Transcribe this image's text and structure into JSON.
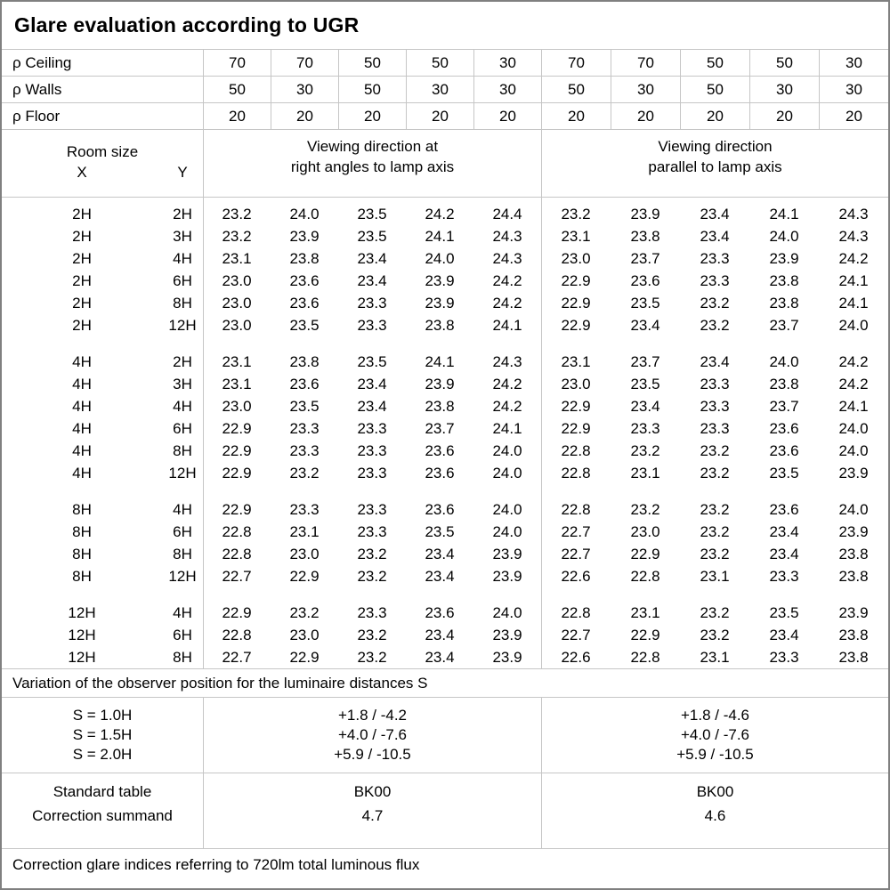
{
  "title": "Glare evaluation according to UGR",
  "reflectance": {
    "rows": [
      {
        "label": "ρ Ceiling",
        "values": [
          "70",
          "70",
          "50",
          "50",
          "30",
          "70",
          "70",
          "50",
          "50",
          "30"
        ]
      },
      {
        "label": "ρ Walls",
        "values": [
          "50",
          "30",
          "50",
          "30",
          "30",
          "50",
          "30",
          "50",
          "30",
          "30"
        ]
      },
      {
        "label": "ρ Floor",
        "values": [
          "20",
          "20",
          "20",
          "20",
          "20",
          "20",
          "20",
          "20",
          "20",
          "20"
        ]
      }
    ]
  },
  "header": {
    "room_size_label": "Room size",
    "x_label": "X",
    "y_label": "Y",
    "group1_label": "Viewing direction at\nright angles to lamp axis",
    "group2_label": "Viewing direction\nparallel to lamp axis"
  },
  "ugr_table": {
    "blocks": [
      {
        "rows": [
          {
            "x": "2H",
            "y": "2H",
            "right_angle": [
              "23.2",
              "24.0",
              "23.5",
              "24.2",
              "24.4"
            ],
            "parallel": [
              "23.2",
              "23.9",
              "23.4",
              "24.1",
              "24.3"
            ]
          },
          {
            "x": "2H",
            "y": "3H",
            "right_angle": [
              "23.2",
              "23.9",
              "23.5",
              "24.1",
              "24.3"
            ],
            "parallel": [
              "23.1",
              "23.8",
              "23.4",
              "24.0",
              "24.3"
            ]
          },
          {
            "x": "2H",
            "y": "4H",
            "right_angle": [
              "23.1",
              "23.8",
              "23.4",
              "24.0",
              "24.3"
            ],
            "parallel": [
              "23.0",
              "23.7",
              "23.3",
              "23.9",
              "24.2"
            ]
          },
          {
            "x": "2H",
            "y": "6H",
            "right_angle": [
              "23.0",
              "23.6",
              "23.4",
              "23.9",
              "24.2"
            ],
            "parallel": [
              "22.9",
              "23.6",
              "23.3",
              "23.8",
              "24.1"
            ]
          },
          {
            "x": "2H",
            "y": "8H",
            "right_angle": [
              "23.0",
              "23.6",
              "23.3",
              "23.9",
              "24.2"
            ],
            "parallel": [
              "22.9",
              "23.5",
              "23.2",
              "23.8",
              "24.1"
            ]
          },
          {
            "x": "2H",
            "y": "12H",
            "right_angle": [
              "23.0",
              "23.5",
              "23.3",
              "23.8",
              "24.1"
            ],
            "parallel": [
              "22.9",
              "23.4",
              "23.2",
              "23.7",
              "24.0"
            ]
          }
        ]
      },
      {
        "rows": [
          {
            "x": "4H",
            "y": "2H",
            "right_angle": [
              "23.1",
              "23.8",
              "23.5",
              "24.1",
              "24.3"
            ],
            "parallel": [
              "23.1",
              "23.7",
              "23.4",
              "24.0",
              "24.2"
            ]
          },
          {
            "x": "4H",
            "y": "3H",
            "right_angle": [
              "23.1",
              "23.6",
              "23.4",
              "23.9",
              "24.2"
            ],
            "parallel": [
              "23.0",
              "23.5",
              "23.3",
              "23.8",
              "24.2"
            ]
          },
          {
            "x": "4H",
            "y": "4H",
            "right_angle": [
              "23.0",
              "23.5",
              "23.4",
              "23.8",
              "24.2"
            ],
            "parallel": [
              "22.9",
              "23.4",
              "23.3",
              "23.7",
              "24.1"
            ]
          },
          {
            "x": "4H",
            "y": "6H",
            "right_angle": [
              "22.9",
              "23.3",
              "23.3",
              "23.7",
              "24.1"
            ],
            "parallel": [
              "22.9",
              "23.3",
              "23.3",
              "23.6",
              "24.0"
            ]
          },
          {
            "x": "4H",
            "y": "8H",
            "right_angle": [
              "22.9",
              "23.3",
              "23.3",
              "23.6",
              "24.0"
            ],
            "parallel": [
              "22.8",
              "23.2",
              "23.2",
              "23.6",
              "24.0"
            ]
          },
          {
            "x": "4H",
            "y": "12H",
            "right_angle": [
              "22.9",
              "23.2",
              "23.3",
              "23.6",
              "24.0"
            ],
            "parallel": [
              "22.8",
              "23.1",
              "23.2",
              "23.5",
              "23.9"
            ]
          }
        ]
      },
      {
        "rows": [
          {
            "x": "8H",
            "y": "4H",
            "right_angle": [
              "22.9",
              "23.3",
              "23.3",
              "23.6",
              "24.0"
            ],
            "parallel": [
              "22.8",
              "23.2",
              "23.2",
              "23.6",
              "24.0"
            ]
          },
          {
            "x": "8H",
            "y": "6H",
            "right_angle": [
              "22.8",
              "23.1",
              "23.3",
              "23.5",
              "24.0"
            ],
            "parallel": [
              "22.7",
              "23.0",
              "23.2",
              "23.4",
              "23.9"
            ]
          },
          {
            "x": "8H",
            "y": "8H",
            "right_angle": [
              "22.8",
              "23.0",
              "23.2",
              "23.4",
              "23.9"
            ],
            "parallel": [
              "22.7",
              "22.9",
              "23.2",
              "23.4",
              "23.8"
            ]
          },
          {
            "x": "8H",
            "y": "12H",
            "right_angle": [
              "22.7",
              "22.9",
              "23.2",
              "23.4",
              "23.9"
            ],
            "parallel": [
              "22.6",
              "22.8",
              "23.1",
              "23.3",
              "23.8"
            ]
          }
        ]
      },
      {
        "rows": [
          {
            "x": "12H",
            "y": "4H",
            "right_angle": [
              "22.9",
              "23.2",
              "23.3",
              "23.6",
              "24.0"
            ],
            "parallel": [
              "22.8",
              "23.1",
              "23.2",
              "23.5",
              "23.9"
            ]
          },
          {
            "x": "12H",
            "y": "6H",
            "right_angle": [
              "22.8",
              "23.0",
              "23.2",
              "23.4",
              "23.9"
            ],
            "parallel": [
              "22.7",
              "22.9",
              "23.2",
              "23.4",
              "23.8"
            ]
          },
          {
            "x": "12H",
            "y": "8H",
            "right_angle": [
              "22.7",
              "22.9",
              "23.2",
              "23.4",
              "23.9"
            ],
            "parallel": [
              "22.6",
              "22.8",
              "23.1",
              "23.3",
              "23.8"
            ]
          }
        ]
      }
    ]
  },
  "variation_note": "Variation of the observer position for the luminaire distances S",
  "s_table": {
    "labels": [
      "S = 1.0H",
      "S = 1.5H",
      "S = 2.0H"
    ],
    "right_angle": [
      "+1.8 / -4.2",
      "+4.0 / -7.6",
      "+5.9 / -10.5"
    ],
    "parallel": [
      "+1.8 / -4.6",
      "+4.0 / -7.6",
      "+5.9 / -10.5"
    ]
  },
  "standard": {
    "labels": [
      "Standard table",
      "Correction summand"
    ],
    "right_angle": [
      "BK00",
      "4.7"
    ],
    "parallel": [
      "BK00",
      "4.6"
    ]
  },
  "footer_note": "Correction glare indices referring to 720lm total luminous flux",
  "colors": {
    "grid_line": "#c6c6c6",
    "outer_border": "#808080",
    "text": "#000000",
    "background": "#ffffff"
  }
}
